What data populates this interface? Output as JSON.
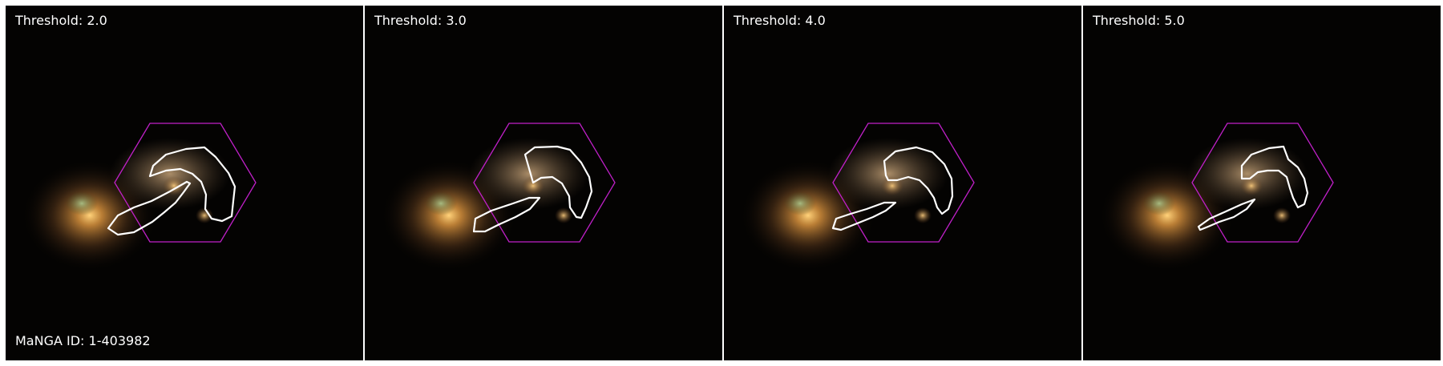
{
  "figure": {
    "panels": [
      {
        "title": "Threshold: 2.0"
      },
      {
        "title": "Threshold: 3.0"
      },
      {
        "title": "Threshold: 4.0"
      },
      {
        "title": "Threshold: 5.0"
      }
    ],
    "manga_id": "MaNGA ID: 1-403982"
  },
  "colors": {
    "hexagon": "#c020c8",
    "contour": "#ffffff",
    "background": "#040302"
  }
}
